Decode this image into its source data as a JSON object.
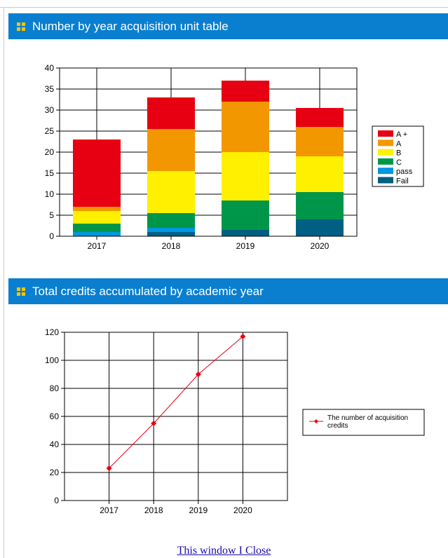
{
  "sections": {
    "units_title": "Number by year acquisition unit table",
    "credits_title": "Total credits accumulated by academic year"
  },
  "close_link": "This window I Close",
  "chart_data": [
    {
      "type": "bar",
      "stacked": true,
      "categories": [
        "2017",
        "2018",
        "2019",
        "2020"
      ],
      "ylim": [
        0,
        40
      ],
      "yticks": [
        0,
        5,
        10,
        15,
        20,
        25,
        30,
        35,
        40
      ],
      "grid": true,
      "legend_position": "right",
      "series": [
        {
          "name": "Fail",
          "color": "#005f83",
          "values": [
            0,
            1,
            1.5,
            4
          ]
        },
        {
          "name": "pass",
          "color": "#0096e0",
          "values": [
            1,
            1,
            0,
            0
          ]
        },
        {
          "name": "C",
          "color": "#00964a",
          "values": [
            2,
            3.5,
            7,
            6.5
          ]
        },
        {
          "name": "B",
          "color": "#fff000",
          "values": [
            3,
            10,
            11.5,
            8.5
          ]
        },
        {
          "name": "A",
          "color": "#f39700",
          "values": [
            1,
            10,
            12,
            7
          ]
        },
        {
          "name": "A +",
          "color": "#e60012",
          "values": [
            16,
            7.5,
            5,
            4.5
          ]
        }
      ]
    },
    {
      "type": "line",
      "categories": [
        "2017",
        "2018",
        "2019",
        "2020"
      ],
      "ylim": [
        0,
        120
      ],
      "yticks": [
        0,
        20,
        40,
        60,
        80,
        100,
        120
      ],
      "grid": true,
      "legend_position": "right",
      "series": [
        {
          "name": "The number of acquisition credits",
          "color": "#e60012",
          "values": [
            23,
            55,
            90,
            117
          ]
        }
      ]
    }
  ]
}
